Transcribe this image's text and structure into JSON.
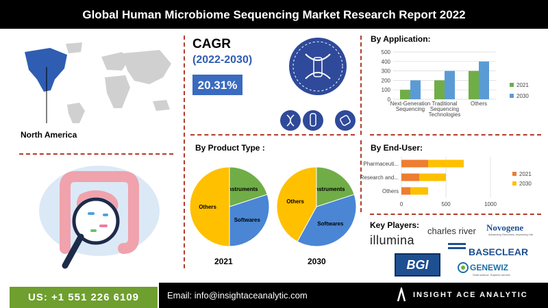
{
  "header": {
    "title": "Global Human Microbiome Sequencing Market Research Report 2022"
  },
  "region": {
    "label": "North America"
  },
  "cagr": {
    "title": "CAGR",
    "period": "(2022-2030)",
    "value": "20.31%"
  },
  "sections": {
    "application": "By Application:",
    "product_type": "By Product Type :",
    "end_user": "By End-User:",
    "key_players": "Key Players:"
  },
  "key_players": {
    "illumina": "illumina",
    "charles_river": "charles river",
    "novogene": "Novogene",
    "novogene_tagline": "Advancing Genomics, Improving Life",
    "baseclear": "BASECLEAR",
    "bgi": "BGI",
    "genewiz": "GENEWIZ",
    "genewiz_tagline": "Solid science. Superior service."
  },
  "footer": {
    "phone": "US: +1 551 226 6109",
    "email": "Email: info@insightaceanalytic.com",
    "brand": "INSIGHT ACE ANALYTIC"
  },
  "colors": {
    "y2021": "#70ad47",
    "y2030": "#5b9bd5",
    "end2021": "#ed7d31",
    "end2030": "#ffc000",
    "pie_others": "#ffc000",
    "pie_instruments": "#70ad47",
    "pie_softwares": "#4a86d4"
  },
  "chart_data": [
    {
      "type": "bar",
      "title": "By Application:",
      "categories": [
        "Next-Generation Sequencing",
        "Traditional Sequencing Technologies",
        "Others"
      ],
      "series": [
        {
          "name": "2021",
          "values": [
            100,
            200,
            300
          ]
        },
        {
          "name": "2030",
          "values": [
            200,
            300,
            400
          ]
        }
      ],
      "ylim": [
        0,
        500
      ],
      "yticks": [
        0,
        100,
        200,
        300,
        400,
        500
      ],
      "legend": "right"
    },
    {
      "type": "bar",
      "orientation": "horizontal",
      "stacked": true,
      "title": "By End-User:",
      "categories": [
        "Pharmaceuti...",
        "Research and...",
        "Others"
      ],
      "series": [
        {
          "name": "2021",
          "values": [
            300,
            200,
            100
          ]
        },
        {
          "name": "2030",
          "values": [
            400,
            300,
            200
          ]
        }
      ],
      "xlim": [
        0,
        1000
      ],
      "xticks": [
        0,
        500,
        1000
      ],
      "legend": "right"
    },
    {
      "type": "pie",
      "title": "2021",
      "slices": [
        {
          "label": "Instruments",
          "value": 20
        },
        {
          "label": "Softwares",
          "value": 30
        },
        {
          "label": "Others",
          "value": 50
        }
      ]
    },
    {
      "type": "pie",
      "title": "2030",
      "slices": [
        {
          "label": "Instruments",
          "value": 20
        },
        {
          "label": "Softwares",
          "value": 38
        },
        {
          "label": "Others",
          "value": 42
        }
      ]
    }
  ]
}
